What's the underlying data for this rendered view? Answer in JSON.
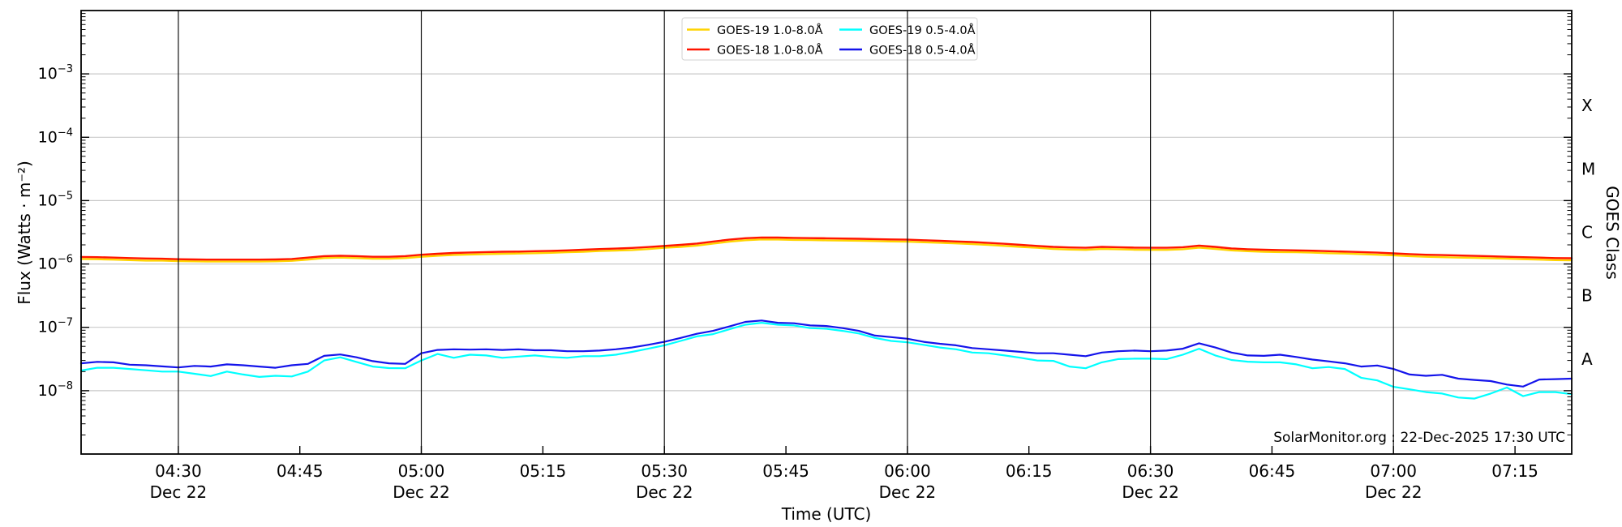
{
  "annotation": {
    "text": "SolarMonitor.org : 22-Dec-2025 17:30 UTC"
  },
  "legend": {
    "entries": [
      {
        "label": "GOES-19 1.0-8.0Å",
        "color": "#ffd400"
      },
      {
        "label": "GOES-18 1.0-8.0Å",
        "color": "#ff1500"
      },
      {
        "label": "GOES-19 0.5-4.0Å",
        "color": "#00ffff"
      },
      {
        "label": "GOES-18 0.5-4.0Å",
        "color": "#1414eb"
      }
    ]
  },
  "chart_data": {
    "type": "line",
    "title": "",
    "xlabel": "Time (UTC)",
    "ylabel": "Flux (Watts · m⁻²)",
    "y2label": "GOES Class",
    "ylim": [
      1e-09,
      0.01
    ],
    "y_ticks_exp": [
      -3,
      -4,
      -5,
      -6,
      -7,
      -8
    ],
    "goes_classes": [
      {
        "letter": "X",
        "exp_center": -3.5
      },
      {
        "letter": "M",
        "exp_center": -4.5
      },
      {
        "letter": "C",
        "exp_center": -5.5
      },
      {
        "letter": "B",
        "exp_center": -6.5
      },
      {
        "letter": "A",
        "exp_center": -7.5
      }
    ],
    "x_start_min": 258,
    "x_end_min": 442,
    "x_step_min": 2,
    "x_ticks": [
      {
        "min": 270,
        "label": "04:30",
        "sub": "Dec 22"
      },
      {
        "min": 285,
        "label": "04:45"
      },
      {
        "min": 300,
        "label": "05:00",
        "sub": "Dec 22"
      },
      {
        "min": 315,
        "label": "05:15"
      },
      {
        "min": 330,
        "label": "05:30",
        "sub": "Dec 22"
      },
      {
        "min": 345,
        "label": "05:45"
      },
      {
        "min": 360,
        "label": "06:00",
        "sub": "Dec 22"
      },
      {
        "min": 375,
        "label": "06:15"
      },
      {
        "min": 390,
        "label": "06:30",
        "sub": "Dec 22"
      },
      {
        "min": 405,
        "label": "06:45"
      },
      {
        "min": 420,
        "label": "07:00",
        "sub": "Dec 22"
      },
      {
        "min": 435,
        "label": "07:15"
      }
    ],
    "grid": {
      "vertical_lines_at_sub_ticks": true,
      "horizontal_lines_at_decades": true
    },
    "legend_position": "upper center",
    "series": [
      {
        "name": "GOES-19 1.0-8.0Å",
        "color": "#ffd400",
        "line_width": 2.4,
        "scale": 1e-06,
        "values": [
          1.2,
          1.19,
          1.17,
          1.15,
          1.13,
          1.13,
          1.11,
          1.1,
          1.09,
          1.09,
          1.09,
          1.09,
          1.1,
          1.12,
          1.17,
          1.24,
          1.26,
          1.24,
          1.21,
          1.21,
          1.24,
          1.3,
          1.35,
          1.39,
          1.41,
          1.43,
          1.45,
          1.46,
          1.48,
          1.5,
          1.53,
          1.56,
          1.6,
          1.63,
          1.66,
          1.72,
          1.8,
          1.86,
          1.95,
          2.1,
          2.25,
          2.37,
          2.44,
          2.43,
          2.4,
          2.38,
          2.36,
          2.34,
          2.33,
          2.3,
          2.27,
          2.25,
          2.2,
          2.16,
          2.11,
          2.06,
          2.0,
          1.93,
          1.86,
          1.8,
          1.73,
          1.69,
          1.67,
          1.73,
          1.71,
          1.68,
          1.67,
          1.67,
          1.71,
          1.81,
          1.73,
          1.64,
          1.59,
          1.56,
          1.54,
          1.53,
          1.51,
          1.48,
          1.46,
          1.43,
          1.4,
          1.37,
          1.33,
          1.3,
          1.28,
          1.26,
          1.25,
          1.23,
          1.21,
          1.19,
          1.17,
          1.15,
          1.14
        ]
      },
      {
        "name": "GOES-18 1.0-8.0Å",
        "color": "#ff1500",
        "line_width": 2.4,
        "scale": 1e-06,
        "values": [
          1.29,
          1.28,
          1.26,
          1.24,
          1.22,
          1.21,
          1.19,
          1.18,
          1.17,
          1.17,
          1.17,
          1.17,
          1.18,
          1.2,
          1.26,
          1.33,
          1.35,
          1.33,
          1.3,
          1.3,
          1.33,
          1.4,
          1.45,
          1.49,
          1.52,
          1.54,
          1.56,
          1.57,
          1.59,
          1.61,
          1.64,
          1.68,
          1.72,
          1.75,
          1.79,
          1.85,
          1.93,
          2.0,
          2.1,
          2.26,
          2.42,
          2.55,
          2.62,
          2.61,
          2.58,
          2.56,
          2.54,
          2.52,
          2.5,
          2.47,
          2.44,
          2.42,
          2.37,
          2.32,
          2.27,
          2.22,
          2.15,
          2.08,
          2.0,
          1.93,
          1.86,
          1.82,
          1.8,
          1.86,
          1.84,
          1.81,
          1.8,
          1.8,
          1.84,
          1.95,
          1.86,
          1.76,
          1.71,
          1.68,
          1.66,
          1.64,
          1.62,
          1.59,
          1.57,
          1.54,
          1.51,
          1.47,
          1.43,
          1.4,
          1.38,
          1.36,
          1.34,
          1.32,
          1.3,
          1.28,
          1.26,
          1.24,
          1.23
        ]
      },
      {
        "name": "GOES-19 0.5-4.0Å",
        "color": "#00ffff",
        "line_width": 2.2,
        "scale": 1e-08,
        "values": [
          2.08,
          2.3,
          2.3,
          2.2,
          2.1,
          2.0,
          2.0,
          1.85,
          1.7,
          2.0,
          1.8,
          1.65,
          1.72,
          1.68,
          2.0,
          3.0,
          3.36,
          2.84,
          2.4,
          2.27,
          2.26,
          3.0,
          3.8,
          3.3,
          3.7,
          3.6,
          3.3,
          3.45,
          3.6,
          3.4,
          3.3,
          3.5,
          3.5,
          3.7,
          4.1,
          4.6,
          5.2,
          6.1,
          7.2,
          7.8,
          9.3,
          11.0,
          11.8,
          11.0,
          10.7,
          9.7,
          9.5,
          8.8,
          8.0,
          6.8,
          6.1,
          5.8,
          5.3,
          4.8,
          4.5,
          4.0,
          3.9,
          3.6,
          3.3,
          3.0,
          2.95,
          2.4,
          2.26,
          2.8,
          3.15,
          3.2,
          3.2,
          3.15,
          3.7,
          4.6,
          3.6,
          3.05,
          2.87,
          2.8,
          2.8,
          2.6,
          2.26,
          2.36,
          2.2,
          1.6,
          1.45,
          1.15,
          1.05,
          0.95,
          0.9,
          0.78,
          0.75,
          0.9,
          1.12,
          0.82,
          0.95,
          0.95,
          0.88
        ]
      },
      {
        "name": "GOES-18 0.5-4.0Å",
        "color": "#1414eb",
        "line_width": 2.2,
        "scale": 1e-08,
        "values": [
          2.7,
          2.85,
          2.8,
          2.57,
          2.52,
          2.42,
          2.33,
          2.46,
          2.4,
          2.6,
          2.52,
          2.4,
          2.3,
          2.52,
          2.65,
          3.55,
          3.73,
          3.36,
          2.93,
          2.7,
          2.65,
          3.9,
          4.4,
          4.5,
          4.45,
          4.5,
          4.4,
          4.5,
          4.35,
          4.35,
          4.2,
          4.2,
          4.3,
          4.5,
          4.8,
          5.3,
          5.9,
          6.8,
          7.9,
          8.8,
          10.3,
          12.2,
          12.8,
          11.8,
          11.6,
          10.7,
          10.5,
          9.7,
          8.8,
          7.4,
          7.0,
          6.6,
          5.9,
          5.5,
          5.2,
          4.7,
          4.5,
          4.3,
          4.1,
          3.9,
          3.9,
          3.7,
          3.5,
          4.0,
          4.2,
          4.3,
          4.2,
          4.3,
          4.6,
          5.6,
          4.8,
          4.0,
          3.6,
          3.55,
          3.7,
          3.4,
          3.1,
          2.9,
          2.7,
          2.4,
          2.5,
          2.2,
          1.8,
          1.72,
          1.78,
          1.55,
          1.48,
          1.42,
          1.25,
          1.16,
          1.5,
          1.52,
          1.55
        ]
      }
    ]
  }
}
